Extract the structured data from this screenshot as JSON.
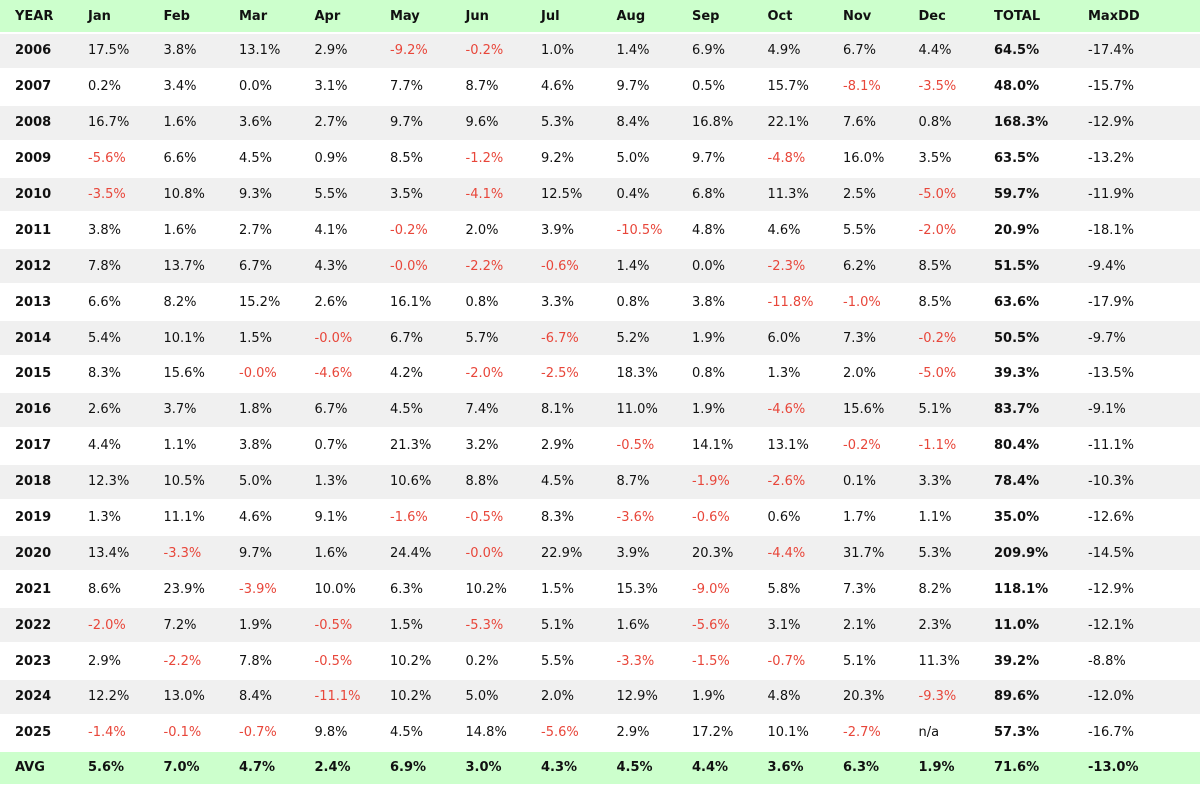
{
  "table": {
    "headers": [
      "YEAR",
      "Jan",
      "Feb",
      "Mar",
      "Apr",
      "May",
      "Jun",
      "Jul",
      "Aug",
      "Sep",
      "Oct",
      "Nov",
      "Dec",
      "TOTAL",
      "MaxDD"
    ],
    "rows": [
      [
        "2006",
        "17.5%",
        "3.8%",
        "13.1%",
        "2.9%",
        "-9.2%",
        "-0.2%",
        "1.0%",
        "1.4%",
        "6.9%",
        "4.9%",
        "6.7%",
        "4.4%",
        "64.5%",
        "-17.4%"
      ],
      [
        "2007",
        "0.2%",
        "3.4%",
        "0.0%",
        "3.1%",
        "7.7%",
        "8.7%",
        "4.6%",
        "9.7%",
        "0.5%",
        "15.7%",
        "-8.1%",
        "-3.5%",
        "48.0%",
        "-15.7%"
      ],
      [
        "2008",
        "16.7%",
        "1.6%",
        "3.6%",
        "2.7%",
        "9.7%",
        "9.6%",
        "5.3%",
        "8.4%",
        "16.8%",
        "22.1%",
        "7.6%",
        "0.8%",
        "168.3%",
        "-12.9%"
      ],
      [
        "2009",
        "-5.6%",
        "6.6%",
        "4.5%",
        "0.9%",
        "8.5%",
        "-1.2%",
        "9.2%",
        "5.0%",
        "9.7%",
        "-4.8%",
        "16.0%",
        "3.5%",
        "63.5%",
        "-13.2%"
      ],
      [
        "2010",
        "-3.5%",
        "10.8%",
        "9.3%",
        "5.5%",
        "3.5%",
        "-4.1%",
        "12.5%",
        "0.4%",
        "6.8%",
        "11.3%",
        "2.5%",
        "-5.0%",
        "59.7%",
        "-11.9%"
      ],
      [
        "2011",
        "3.8%",
        "1.6%",
        "2.7%",
        "4.1%",
        "-0.2%",
        "2.0%",
        "3.9%",
        "-10.5%",
        "4.8%",
        "4.6%",
        "5.5%",
        "-2.0%",
        "20.9%",
        "-18.1%"
      ],
      [
        "2012",
        "7.8%",
        "13.7%",
        "6.7%",
        "4.3%",
        "-0.0%",
        "-2.2%",
        "-0.6%",
        "1.4%",
        "0.0%",
        "-2.3%",
        "6.2%",
        "8.5%",
        "51.5%",
        "-9.4%"
      ],
      [
        "2013",
        "6.6%",
        "8.2%",
        "15.2%",
        "2.6%",
        "16.1%",
        "0.8%",
        "3.3%",
        "0.8%",
        "3.8%",
        "-11.8%",
        "-1.0%",
        "8.5%",
        "63.6%",
        "-17.9%"
      ],
      [
        "2014",
        "5.4%",
        "10.1%",
        "1.5%",
        "-0.0%",
        "6.7%",
        "5.7%",
        "-6.7%",
        "5.2%",
        "1.9%",
        "6.0%",
        "7.3%",
        "-0.2%",
        "50.5%",
        "-9.7%"
      ],
      [
        "2015",
        "8.3%",
        "15.6%",
        "-0.0%",
        "-4.6%",
        "4.2%",
        "-2.0%",
        "-2.5%",
        "18.3%",
        "0.8%",
        "1.3%",
        "2.0%",
        "-5.0%",
        "39.3%",
        "-13.5%"
      ],
      [
        "2016",
        "2.6%",
        "3.7%",
        "1.8%",
        "6.7%",
        "4.5%",
        "7.4%",
        "8.1%",
        "11.0%",
        "1.9%",
        "-4.6%",
        "15.6%",
        "5.1%",
        "83.7%",
        "-9.1%"
      ],
      [
        "2017",
        "4.4%",
        "1.1%",
        "3.8%",
        "0.7%",
        "21.3%",
        "3.2%",
        "2.9%",
        "-0.5%",
        "14.1%",
        "13.1%",
        "-0.2%",
        "-1.1%",
        "80.4%",
        "-11.1%"
      ],
      [
        "2018",
        "12.3%",
        "10.5%",
        "5.0%",
        "1.3%",
        "10.6%",
        "8.8%",
        "4.5%",
        "8.7%",
        "-1.9%",
        "-2.6%",
        "0.1%",
        "3.3%",
        "78.4%",
        "-10.3%"
      ],
      [
        "2019",
        "1.3%",
        "11.1%",
        "4.6%",
        "9.1%",
        "-1.6%",
        "-0.5%",
        "8.3%",
        "-3.6%",
        "-0.6%",
        "0.6%",
        "1.7%",
        "1.1%",
        "35.0%",
        "-12.6%"
      ],
      [
        "2020",
        "13.4%",
        "-3.3%",
        "9.7%",
        "1.6%",
        "24.4%",
        "-0.0%",
        "22.9%",
        "3.9%",
        "20.3%",
        "-4.4%",
        "31.7%",
        "5.3%",
        "209.9%",
        "-14.5%"
      ],
      [
        "2021",
        "8.6%",
        "23.9%",
        "-3.9%",
        "10.0%",
        "6.3%",
        "10.2%",
        "1.5%",
        "15.3%",
        "-9.0%",
        "5.8%",
        "7.3%",
        "8.2%",
        "118.1%",
        "-12.9%"
      ],
      [
        "2022",
        "-2.0%",
        "7.2%",
        "1.9%",
        "-0.5%",
        "1.5%",
        "-5.3%",
        "5.1%",
        "1.6%",
        "-5.6%",
        "3.1%",
        "2.1%",
        "2.3%",
        "11.0%",
        "-12.1%"
      ],
      [
        "2023",
        "2.9%",
        "-2.2%",
        "7.8%",
        "-0.5%",
        "10.2%",
        "0.2%",
        "5.5%",
        "-3.3%",
        "-1.5%",
        "-0.7%",
        "5.1%",
        "11.3%",
        "39.2%",
        "-8.8%"
      ],
      [
        "2024",
        "12.2%",
        "13.0%",
        "8.4%",
        "-11.1%",
        "10.2%",
        "5.0%",
        "2.0%",
        "12.9%",
        "1.9%",
        "4.8%",
        "20.3%",
        "-9.3%",
        "89.6%",
        "-12.0%"
      ],
      [
        "2025",
        "-1.4%",
        "-0.1%",
        "-0.7%",
        "9.8%",
        "4.5%",
        "14.8%",
        "-5.6%",
        "2.9%",
        "17.2%",
        "10.1%",
        "-2.7%",
        "n/a",
        "57.3%",
        "-16.7%"
      ]
    ],
    "avg": [
      "AVG",
      "5.6%",
      "7.0%",
      "4.7%",
      "2.4%",
      "6.9%",
      "3.0%",
      "4.3%",
      "4.5%",
      "4.4%",
      "3.6%",
      "6.3%",
      "1.9%",
      "71.6%",
      "-13.0%"
    ],
    "colors": {
      "header_bg": "#ccffcc",
      "stripe_bg": "#f0f0f0",
      "negative_text": "#e8463a",
      "text": "#111111"
    }
  }
}
